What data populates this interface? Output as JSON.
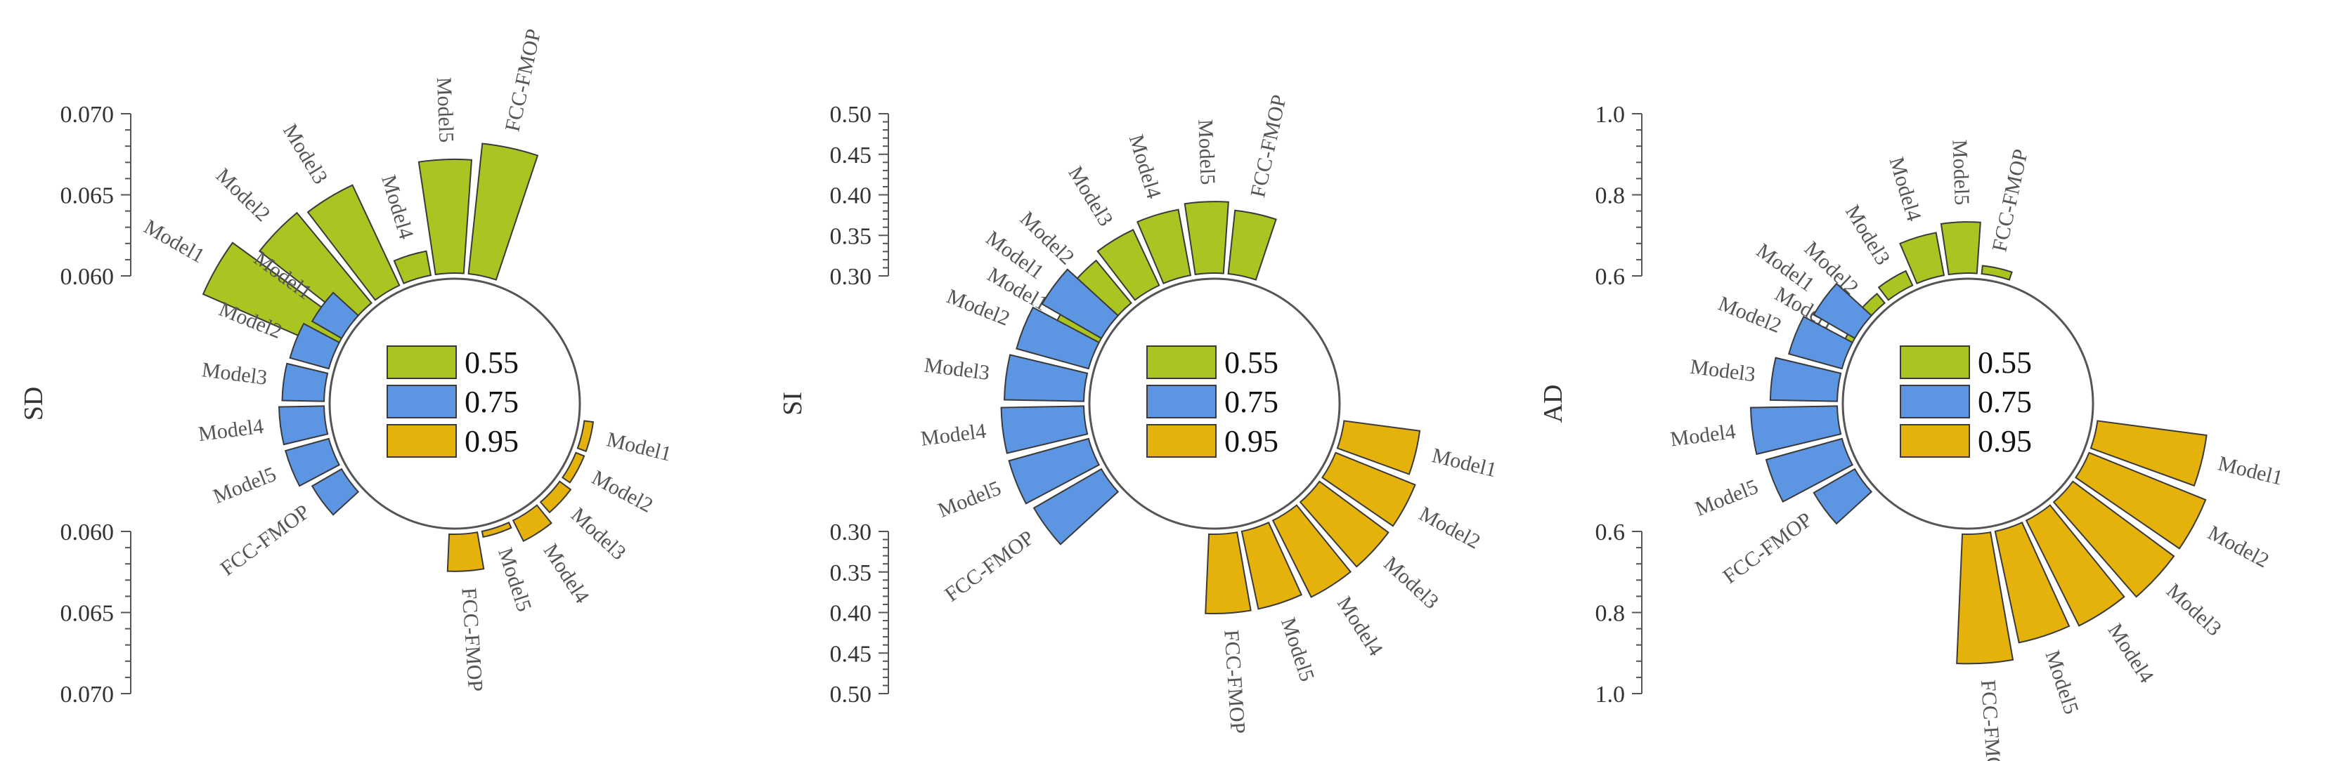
{
  "chart_data": [
    {
      "type": "radial-bar",
      "ylabel": "SD",
      "groups": [
        "0.55",
        "0.75",
        "0.95"
      ],
      "colors": [
        "#aac522",
        "#5c96e3",
        "#e5b20b"
      ],
      "categories": [
        "Model1",
        "Model2",
        "Model3",
        "Model4",
        "Model5",
        "FCC-FMOP"
      ],
      "series": [
        {
          "name": "0.55",
          "values": [
            0.0689,
            0.0672,
            0.0668,
            0.0613,
            0.067,
            0.0681
          ]
        },
        {
          "name": "0.75",
          "values": [
            0.0619,
            0.0623,
            0.0624,
            0.0626,
            0.0626,
            0.0619
          ]
        },
        {
          "name": "0.95",
          "values": [
            0.0603,
            0.0603,
            0.0606,
            0.0612,
            0.0601,
            0.0621
          ]
        }
      ],
      "upper_axis": {
        "ticks": [
          "0.070",
          "0.065",
          "0.060"
        ],
        "range": [
          0.06,
          0.07
        ]
      },
      "lower_axis": {
        "ticks": [
          "0.060",
          "0.065",
          "0.070"
        ],
        "range": [
          0.06,
          0.07
        ]
      }
    },
    {
      "type": "radial-bar",
      "ylabel": "SI",
      "groups": [
        "0.55",
        "0.75",
        "0.95"
      ],
      "colors": [
        "#aac522",
        "#5c96e3",
        "#e5b20b"
      ],
      "categories": [
        "Model1",
        "Model2",
        "Model3",
        "Model4",
        "Model5",
        "FCC-FMOP"
      ],
      "series": [
        {
          "name": "0.55",
          "values": [
            0.355,
            0.365,
            0.373,
            0.38,
            0.386,
            0.376
          ]
        },
        {
          "name": "0.75",
          "values": [
            0.382,
            0.39,
            0.396,
            0.4,
            0.4,
            0.394
          ]
        },
        {
          "name": "0.95",
          "values": [
            0.392,
            0.404,
            0.404,
            0.404,
            0.396,
            0.396
          ]
        }
      ],
      "upper_axis": {
        "ticks": [
          "0.50",
          "0.45",
          "0.40",
          "0.35",
          "0.30"
        ],
        "range": [
          0.3,
          0.5
        ]
      },
      "lower_axis": {
        "ticks": [
          "0.30",
          "0.35",
          "0.40",
          "0.45",
          "0.50"
        ],
        "range": [
          0.3,
          0.5
        ]
      }
    },
    {
      "type": "radial-bar",
      "ylabel": "AD",
      "groups": [
        "0.55",
        "0.75",
        "0.95"
      ],
      "colors": [
        "#aac522",
        "#5c96e3",
        "#e5b20b"
      ],
      "categories": [
        "Model1",
        "Model2",
        "Model3",
        "Model4",
        "Model5",
        "FCC-FMOP"
      ],
      "series": [
        {
          "name": "0.55",
          "values": [
            0.61,
            0.62,
            0.63,
            0.7,
            0.72,
            0.61
          ]
        },
        {
          "name": "0.75",
          "values": [
            0.71,
            0.73,
            0.76,
            0.81,
            0.79,
            0.71
          ]
        },
        {
          "name": "0.95",
          "values": [
            0.87,
            0.91,
            0.91,
            0.89,
            0.88,
            0.92
          ]
        }
      ],
      "upper_axis": {
        "ticks": [
          "1.0",
          "0.8",
          "0.6"
        ],
        "range": [
          0.6,
          1.0
        ]
      },
      "lower_axis": {
        "ticks": [
          "0.6",
          "0.8",
          "1.0"
        ],
        "range": [
          0.6,
          1.0
        ]
      }
    }
  ]
}
